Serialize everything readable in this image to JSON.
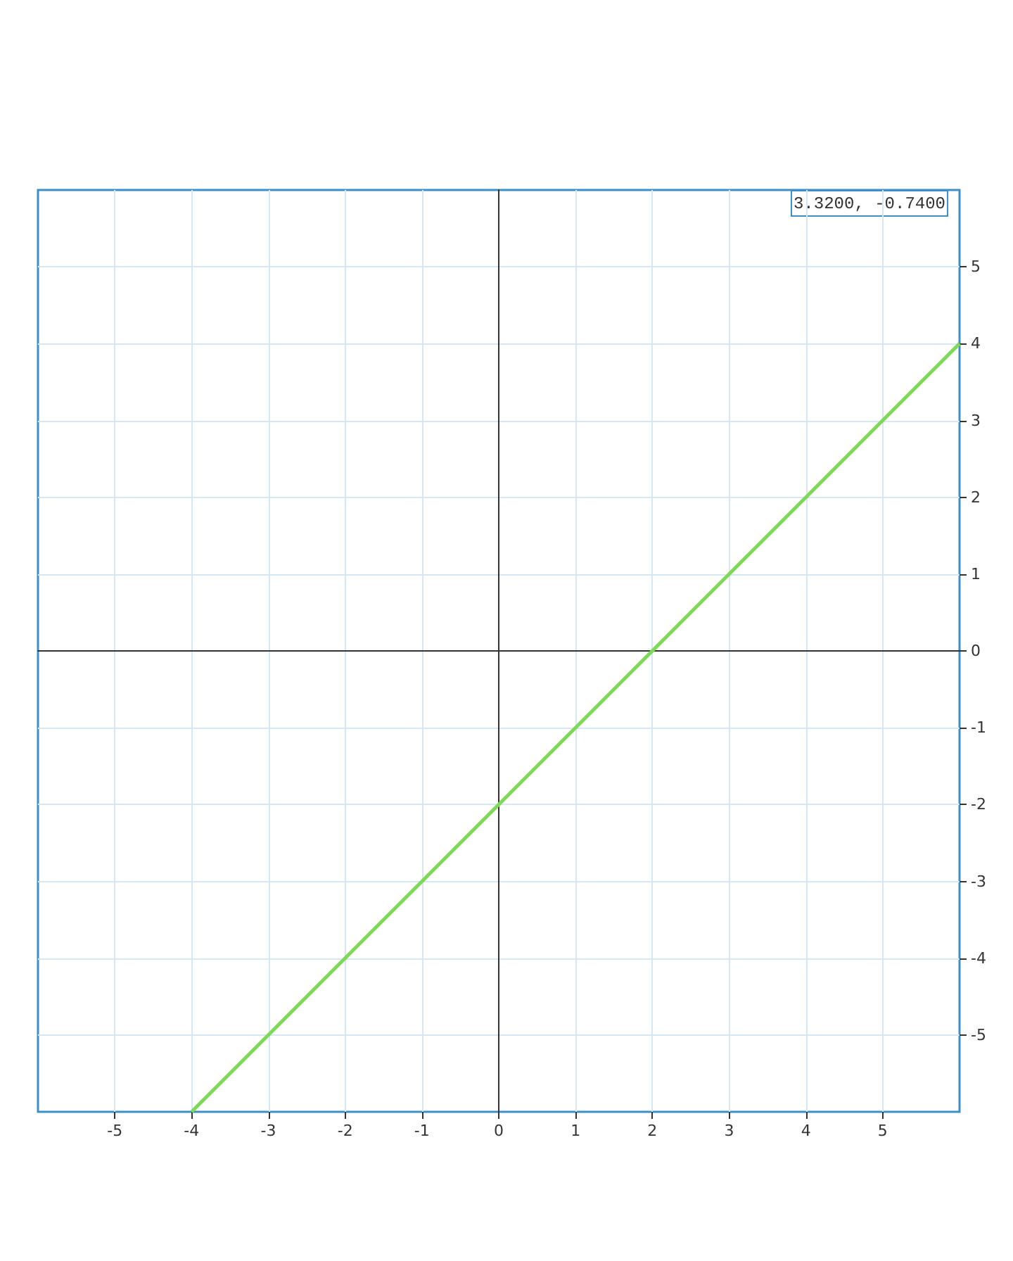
{
  "chart_data": {
    "type": "line",
    "series": [
      {
        "color": "#7ed957",
        "x": [
          -4,
          6
        ],
        "values": [
          -6,
          4
        ]
      }
    ],
    "xlim": [
      -6,
      6
    ],
    "ylim": [
      -6,
      6
    ],
    "xticks": [
      -5,
      -4,
      -3,
      -2,
      -1,
      0,
      1,
      2,
      3,
      4,
      5
    ],
    "yticks": [
      -5,
      -4,
      -3,
      -2,
      -1,
      0,
      1,
      2,
      3,
      4,
      5
    ],
    "grid": true,
    "marker": "none",
    "line_style": "solid",
    "annotations": [
      "3.3200, -0.7400"
    ]
  }
}
